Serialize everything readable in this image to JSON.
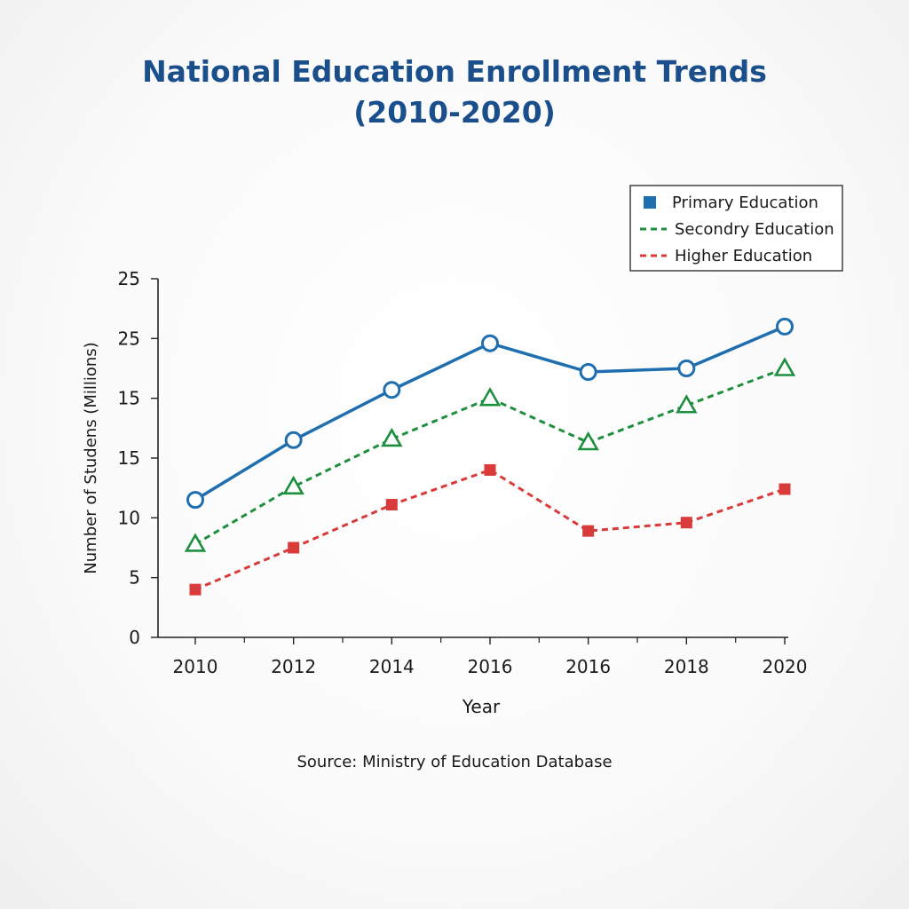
{
  "chart_data": {
    "type": "line",
    "title_line1": "National Education Enrollment Trends",
    "title_line2": "(2010-2020)",
    "xlabel": "Year",
    "ylabel": "Number of Studens (Millions)",
    "x_tick_labels": [
      "2010",
      "2012",
      "2014",
      "2016",
      "2016",
      "2018",
      "2020"
    ],
    "y_tick_labels": [
      "0",
      "5",
      "10",
      "15",
      "15",
      "25",
      "25"
    ],
    "ylim": [
      0,
      30
    ],
    "series": [
      {
        "name": "Primary Education",
        "color": "#1f6fb0",
        "dash": "solid",
        "marker": "circle",
        "values": [
          11.5,
          16.5,
          20.7,
          24.6,
          22.2,
          22.5,
          26
        ]
      },
      {
        "name": "Secondry Education",
        "color": "#1e8f3e",
        "dash": "dashed",
        "marker": "triangle",
        "values": [
          7.8,
          12.6,
          16.6,
          20,
          16.3,
          19.4,
          22.5
        ]
      },
      {
        "name": "Higher Education",
        "color": "#d93b3b",
        "dash": "dashed",
        "marker": "square",
        "values": [
          4,
          7.5,
          11.1,
          14,
          8.9,
          9.6,
          12.4
        ]
      }
    ],
    "legend_position": "top-right",
    "source": "Source: Ministry of Education Database"
  }
}
